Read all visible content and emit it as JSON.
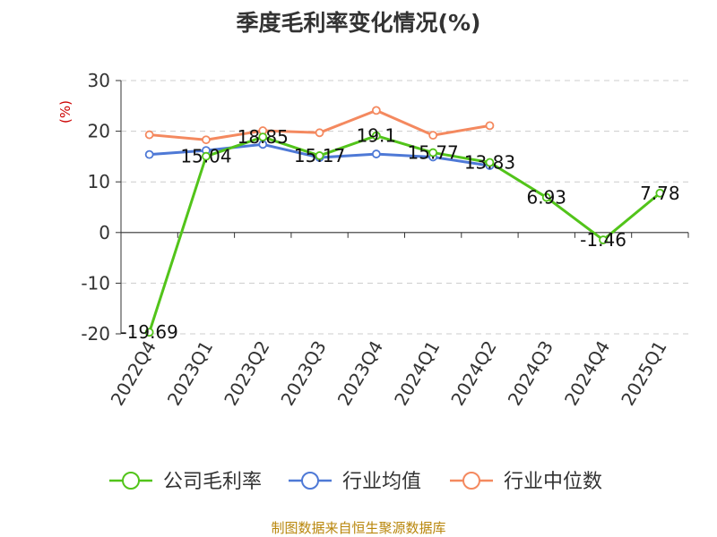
{
  "chart_data": {
    "type": "line",
    "title": "季度毛利率变化情况(%)",
    "ylabel": "(%)",
    "categories": [
      "2022Q4",
      "2023Q1",
      "2023Q2",
      "2023Q3",
      "2023Q4",
      "2024Q1",
      "2024Q2",
      "2024Q3",
      "2024Q4",
      "2025Q1"
    ],
    "ylim": [
      -20,
      30
    ],
    "yticks": [
      30,
      20,
      10,
      0,
      -10,
      -20
    ],
    "grid": "horizontal-dashed",
    "legend_position": "bottom",
    "series": [
      {
        "name": "公司毛利率",
        "color": "#52c41a",
        "values": [
          -19.69,
          15.04,
          18.85,
          15.17,
          19.1,
          15.77,
          13.83,
          6.93,
          -1.46,
          7.78
        ],
        "labels": [
          "-19.69",
          "15.04",
          "18.85",
          "15.17",
          "19.1",
          "15.77",
          "13.83",
          "6.93",
          "-1.46",
          "7.78"
        ]
      },
      {
        "name": "行业均值",
        "color": "#4e79d6",
        "values": [
          15.4,
          16.2,
          17.4,
          14.8,
          15.5,
          14.9,
          13.2,
          null,
          null,
          null
        ]
      },
      {
        "name": "行业中位数",
        "color": "#f4895f",
        "values": [
          19.3,
          18.3,
          20.1,
          19.7,
          24.1,
          19.2,
          21.1,
          null,
          null,
          null
        ]
      }
    ]
  },
  "source_text": "制图数据来自恒生聚源数据库"
}
